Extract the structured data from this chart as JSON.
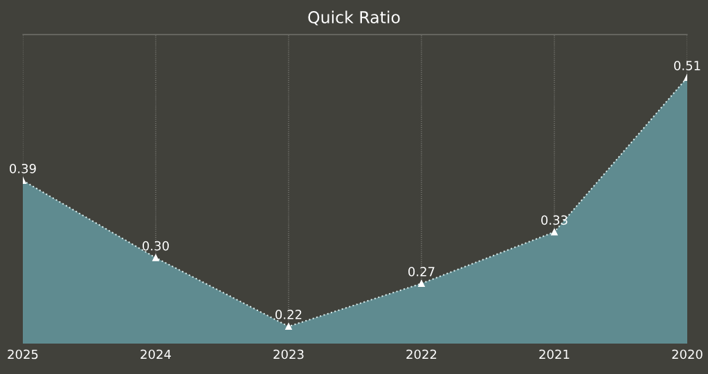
{
  "chart_data": {
    "type": "area",
    "title": "Quick Ratio",
    "categories": [
      "2025",
      "2024",
      "2023",
      "2022",
      "2021",
      "2020"
    ],
    "series": [
      {
        "color": "#5f8b90",
        "values": [
          0.39,
          0.3,
          0.22,
          0.27,
          0.33,
          0.51
        ],
        "value_labels": [
          "0.39",
          "0.30",
          "0.22",
          "0.27",
          "0.33",
          "0.51"
        ]
      }
    ],
    "ylim": [
      0.2,
      0.56
    ],
    "tick_labels": "x",
    "grid": "x",
    "marker": "triangle",
    "line_style": "dotted"
  }
}
